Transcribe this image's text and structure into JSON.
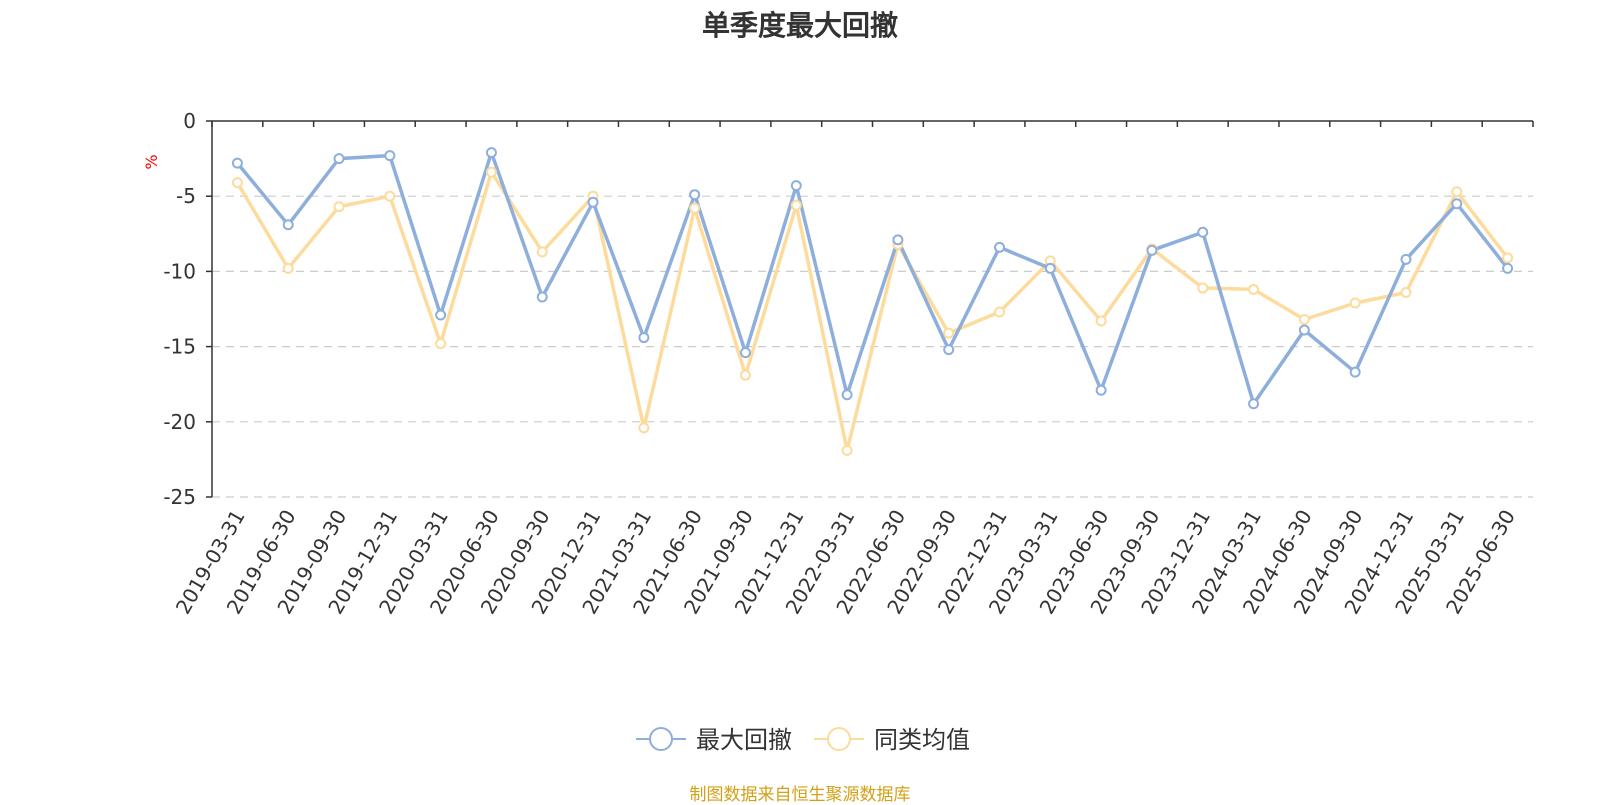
{
  "title": "单季度最大回撤",
  "footer": "制图数据来自恒生聚源数据库",
  "colors": {
    "series1": "#8eaedc",
    "series2": "#fddb9c",
    "grid": "#cccccc",
    "axis": "#333333",
    "unit": "#ff0000",
    "footer": "#d4a017"
  },
  "chart_data": {
    "type": "line",
    "title": "单季度最大回撤",
    "ylabel": "%",
    "ylim": [
      -25,
      0
    ],
    "yticks": [
      0,
      -5,
      -10,
      -15,
      -20,
      -25
    ],
    "grid": "horizontal dashed",
    "legend_position": "bottom-center",
    "categories": [
      "2019-03-31",
      "2019-06-30",
      "2019-09-30",
      "2019-12-31",
      "2020-03-31",
      "2020-06-30",
      "2020-09-30",
      "2020-12-31",
      "2021-03-31",
      "2021-06-30",
      "2021-09-30",
      "2021-12-31",
      "2022-03-31",
      "2022-06-30",
      "2022-09-30",
      "2022-12-31",
      "2023-03-31",
      "2023-06-30",
      "2023-09-30",
      "2023-12-31",
      "2024-03-31",
      "2024-06-30",
      "2024-09-30",
      "2024-12-31",
      "2025-03-31",
      "2025-06-30"
    ],
    "series": [
      {
        "name": "最大回撤",
        "color": "#8eaedc",
        "values": [
          -2.8,
          -6.9,
          -2.5,
          -2.3,
          -12.9,
          -2.1,
          -11.7,
          -5.4,
          -14.4,
          -4.9,
          -15.4,
          -4.3,
          -18.2,
          -7.9,
          -15.2,
          -8.4,
          -9.8,
          -17.9,
          -8.6,
          -7.4,
          -18.8,
          -13.9,
          -16.7,
          -9.2,
          -5.5,
          -9.8
        ]
      },
      {
        "name": "同类均值",
        "color": "#fddb9c",
        "values": [
          -4.1,
          -9.8,
          -5.7,
          -5.0,
          -14.8,
          -3.4,
          -8.7,
          -5.0,
          -20.4,
          -5.8,
          -16.9,
          -5.6,
          -21.9,
          -8.2,
          -14.1,
          -12.7,
          -9.3,
          -13.3,
          -8.5,
          -11.1,
          -11.2,
          -13.2,
          -12.1,
          -11.4,
          -4.7,
          -9.1
        ]
      }
    ]
  }
}
